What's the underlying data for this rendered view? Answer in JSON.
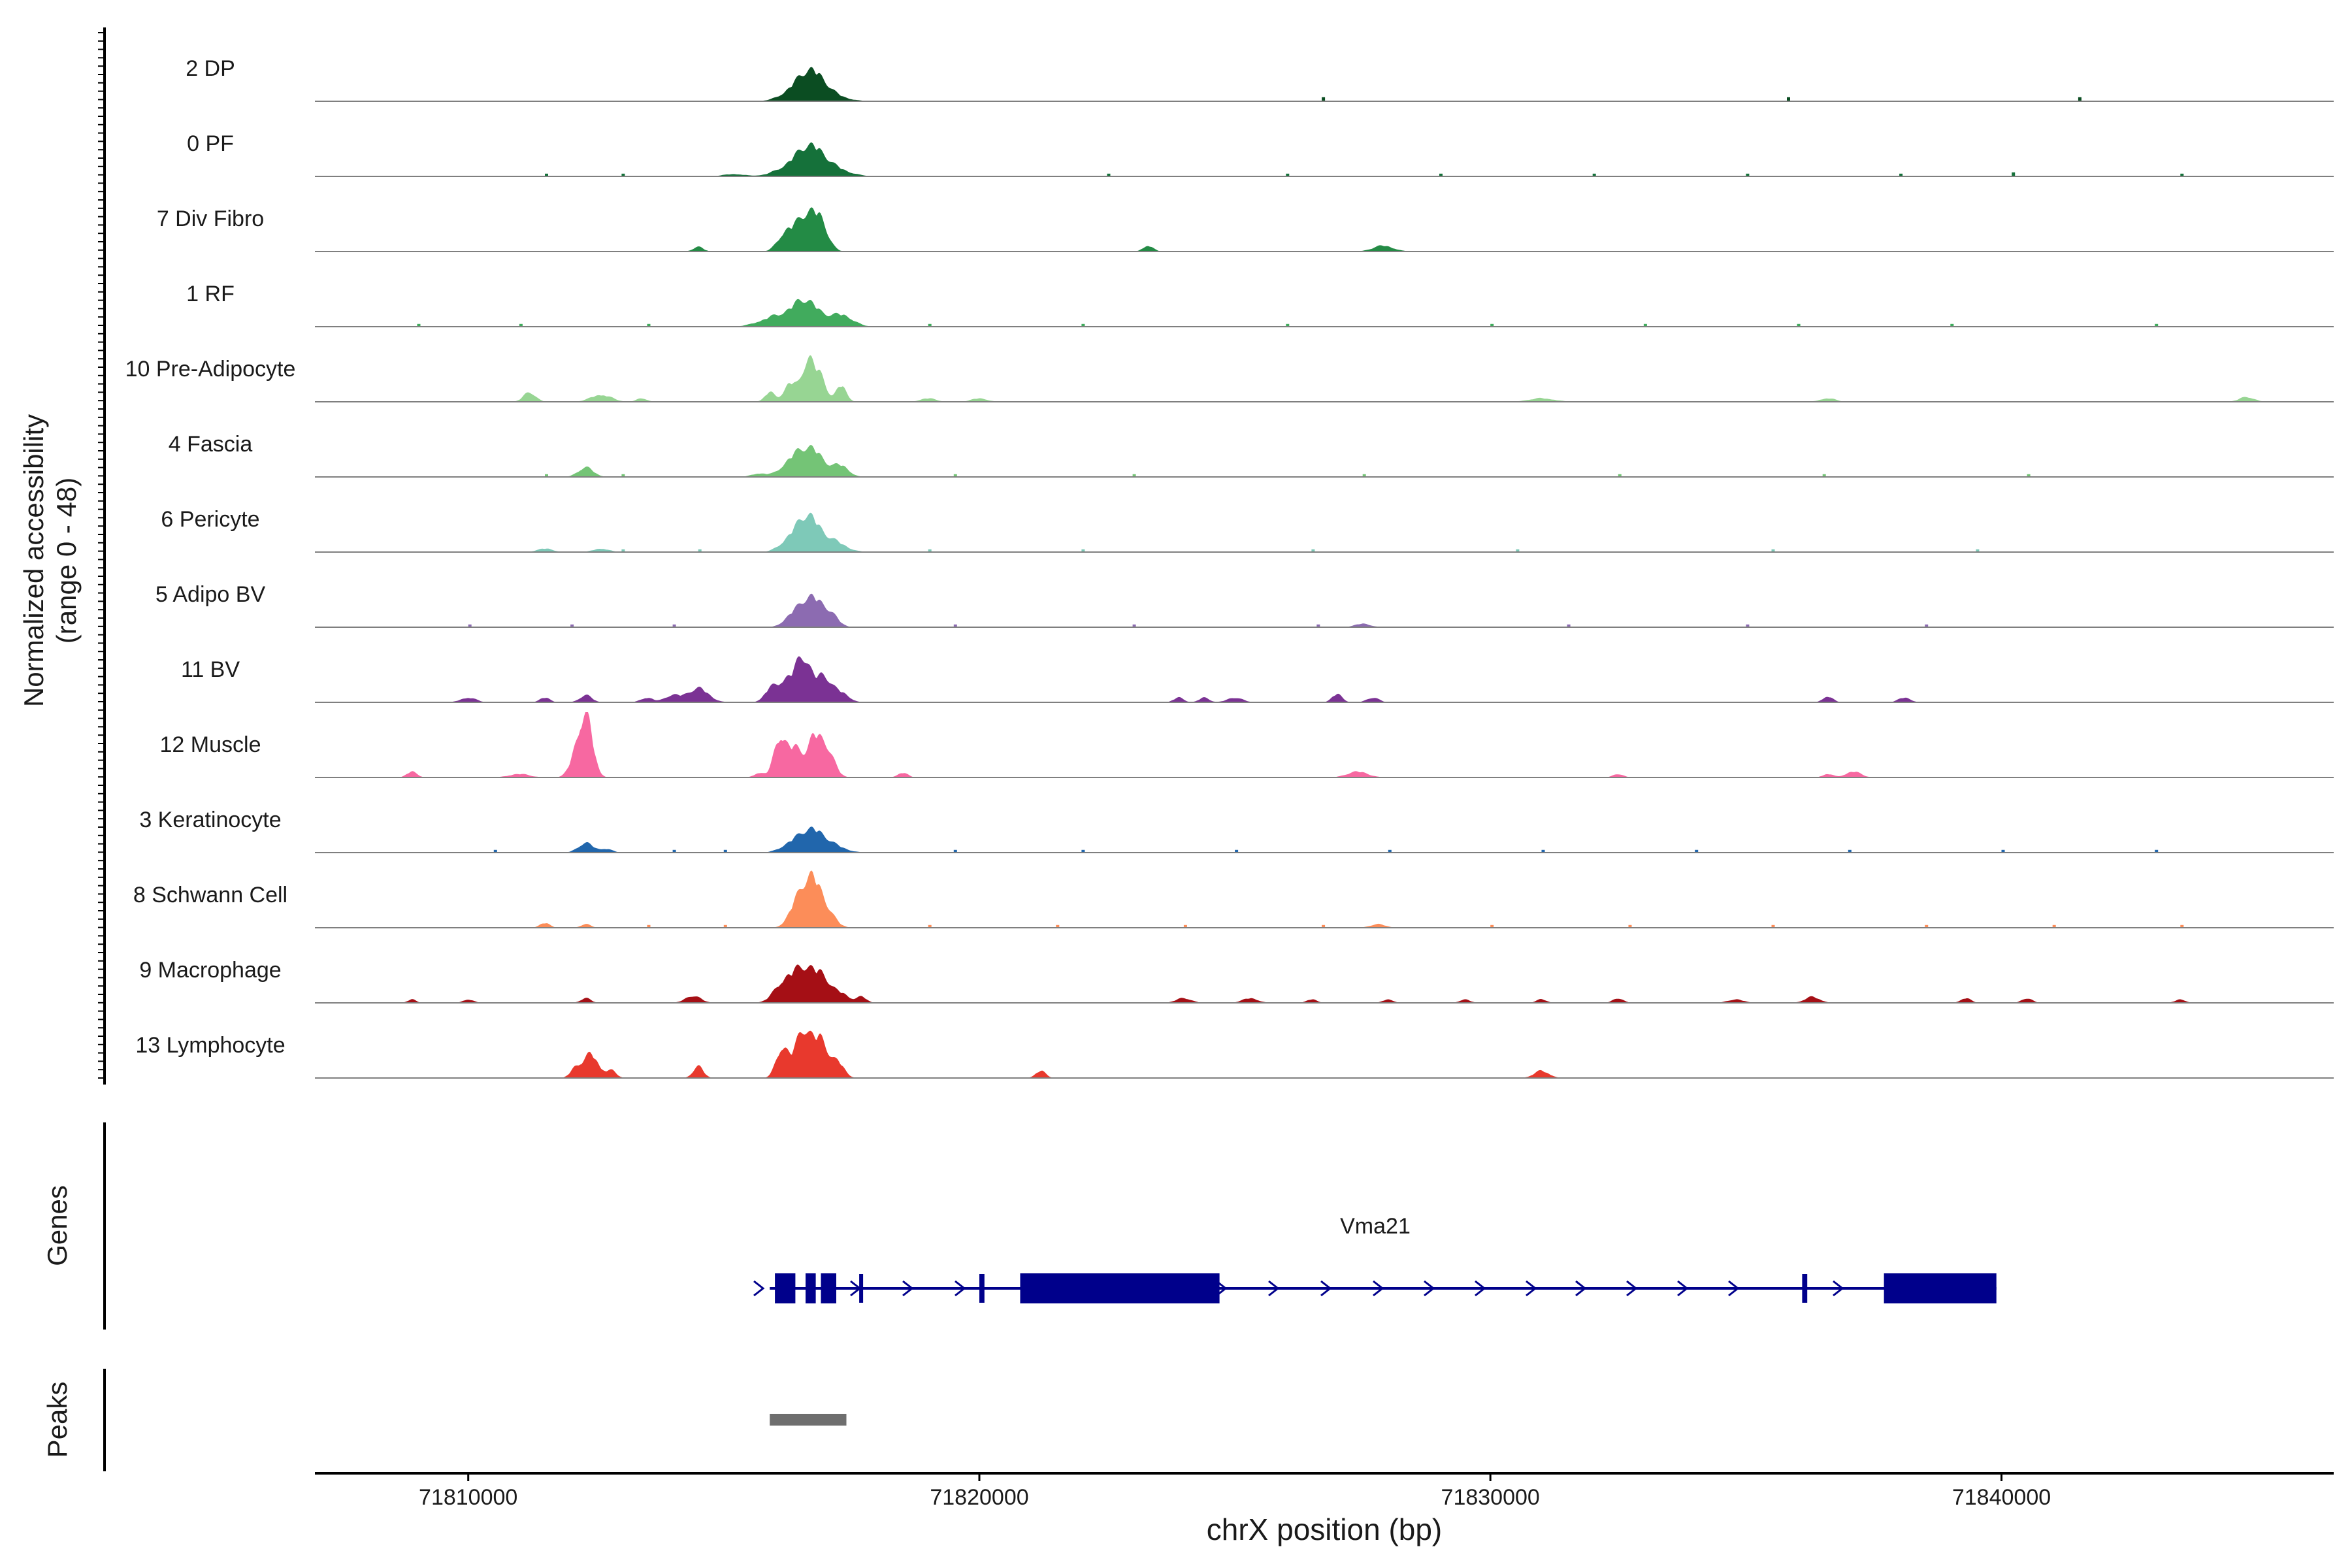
{
  "chart_data": {
    "type": "area",
    "chromosome": "chrX",
    "xlabel": "chrX position (bp)",
    "xlim": [
      71807000,
      71846500
    ],
    "xticks": [
      71810000,
      71820000,
      71830000,
      71840000
    ],
    "xtick_labels": [
      "71810000",
      "71820000",
      "71830000",
      "71840000"
    ],
    "ylabel_line1": "Normalized accessibility",
    "ylabel_line2": "(range 0 - 48)",
    "ylim": [
      0,
      48
    ],
    "baseline_color": "#7f7f7f",
    "series": [
      {
        "name": "2 DP",
        "color": "#0b4d22",
        "peaks": [
          [
            71816700,
            260,
            24
          ],
          [
            71816300,
            250,
            5
          ],
          [
            71817100,
            300,
            4
          ]
        ],
        "noise": [
          [
            71826700,
            3
          ],
          [
            71835800,
            3
          ],
          [
            71841500,
            3
          ]
        ]
      },
      {
        "name": "0 PF",
        "color": "#15713a",
        "peaks": [
          [
            71816700,
            260,
            22
          ],
          [
            71816300,
            300,
            7
          ],
          [
            71817150,
            300,
            6
          ],
          [
            71815200,
            200,
            2
          ]
        ],
        "noise": [
          [
            71811500,
            2
          ],
          [
            71813000,
            2
          ],
          [
            71822500,
            2
          ],
          [
            71826000,
            2
          ],
          [
            71829000,
            2
          ],
          [
            71832000,
            2
          ],
          [
            71835000,
            2
          ],
          [
            71838000,
            2
          ],
          [
            71840200,
            3
          ],
          [
            71843500,
            2
          ]
        ]
      },
      {
        "name": "7 Div Fibro",
        "color": "#238b45",
        "peaks": [
          [
            71816600,
            200,
            30
          ],
          [
            71816200,
            150,
            14
          ],
          [
            71816900,
            150,
            20
          ],
          [
            71814500,
            100,
            4
          ],
          [
            71823300,
            100,
            5
          ],
          [
            71827900,
            200,
            5
          ]
        ],
        "noise": []
      },
      {
        "name": "1 RF",
        "color": "#41ab5d",
        "peaks": [
          [
            71816600,
            260,
            22
          ],
          [
            71816000,
            300,
            8
          ],
          [
            71817300,
            220,
            10
          ]
        ],
        "noise": [
          [
            71809000,
            2
          ],
          [
            71811000,
            2
          ],
          [
            71813500,
            2
          ],
          [
            71819000,
            2
          ],
          [
            71822000,
            2
          ],
          [
            71826000,
            2
          ],
          [
            71830000,
            2
          ],
          [
            71833000,
            2
          ],
          [
            71836000,
            2
          ],
          [
            71839000,
            2
          ],
          [
            71843000,
            2
          ]
        ]
      },
      {
        "name": "10 Pre-Adipocyte",
        "color": "#97d593",
        "peaks": [
          [
            71816650,
            120,
            36
          ],
          [
            71816300,
            120,
            16
          ],
          [
            71816900,
            110,
            20
          ],
          [
            71817300,
            100,
            14
          ],
          [
            71815900,
            100,
            8
          ],
          [
            71811200,
            120,
            8
          ],
          [
            71812600,
            200,
            6
          ],
          [
            71813400,
            100,
            3
          ],
          [
            71819000,
            150,
            3
          ],
          [
            71820000,
            150,
            3
          ],
          [
            71831000,
            250,
            3
          ],
          [
            71836600,
            150,
            3
          ],
          [
            71844800,
            150,
            4
          ]
        ],
        "noise": []
      },
      {
        "name": "4 Fascia",
        "color": "#74c476",
        "peaks": [
          [
            71816700,
            250,
            24
          ],
          [
            71816300,
            200,
            10
          ],
          [
            71817300,
            150,
            9
          ],
          [
            71812300,
            150,
            8
          ],
          [
            71815700,
            150,
            3
          ]
        ],
        "noise": [
          [
            71811500,
            2
          ],
          [
            71813000,
            2
          ],
          [
            71819500,
            2
          ],
          [
            71823000,
            2
          ],
          [
            71827500,
            2
          ],
          [
            71832500,
            2
          ],
          [
            71836500,
            2
          ],
          [
            71840500,
            2
          ]
        ]
      },
      {
        "name": "6 Pericyte",
        "color": "#7ec9b8",
        "peaks": [
          [
            71816650,
            200,
            28
          ],
          [
            71816300,
            200,
            10
          ],
          [
            71817100,
            250,
            10
          ],
          [
            71811500,
            150,
            3
          ],
          [
            71812600,
            150,
            3
          ]
        ],
        "noise": [
          [
            71813000,
            2
          ],
          [
            71814500,
            2
          ],
          [
            71819000,
            2
          ],
          [
            71822000,
            2
          ],
          [
            71826500,
            2
          ],
          [
            71830500,
            2
          ],
          [
            71835500,
            2
          ],
          [
            71839500,
            2
          ]
        ]
      },
      {
        "name": "5 Adipo BV",
        "color": "#8c6bb1",
        "peaks": [
          [
            71816700,
            230,
            26
          ],
          [
            71816300,
            150,
            6
          ],
          [
            71817100,
            150,
            8
          ],
          [
            71827500,
            150,
            3
          ]
        ],
        "noise": [
          [
            71810000,
            2
          ],
          [
            71812000,
            2
          ],
          [
            71814000,
            2
          ],
          [
            71819500,
            2
          ],
          [
            71823000,
            2
          ],
          [
            71826600,
            2
          ],
          [
            71831500,
            2
          ],
          [
            71835000,
            2
          ],
          [
            71838500,
            2
          ]
        ]
      },
      {
        "name": "11 BV",
        "color": "#7b3294",
        "peaks": [
          [
            71816550,
            150,
            38
          ],
          [
            71816200,
            150,
            18
          ],
          [
            71816950,
            150,
            22
          ],
          [
            71817300,
            150,
            8
          ],
          [
            71815900,
            120,
            10
          ],
          [
            71814500,
            200,
            12
          ],
          [
            71814000,
            150,
            6
          ],
          [
            71812300,
            120,
            6
          ],
          [
            71811500,
            100,
            4
          ],
          [
            71813500,
            120,
            4
          ],
          [
            71810000,
            150,
            4
          ],
          [
            71823900,
            100,
            4
          ],
          [
            71824400,
            100,
            4
          ],
          [
            71825000,
            150,
            4
          ],
          [
            71827000,
            100,
            7
          ],
          [
            71827700,
            120,
            4
          ],
          [
            71836600,
            100,
            5
          ],
          [
            71838100,
            120,
            4
          ]
        ],
        "noise": []
      },
      {
        "name": "12 Muscle",
        "color": "#f768a1",
        "peaks": [
          [
            71812200,
            150,
            34
          ],
          [
            71812350,
            120,
            28
          ],
          [
            71816100,
            120,
            32
          ],
          [
            71816400,
            150,
            24
          ],
          [
            71816750,
            120,
            28
          ],
          [
            71817000,
            150,
            26
          ],
          [
            71815700,
            100,
            4
          ],
          [
            71818500,
            100,
            4
          ],
          [
            71808900,
            100,
            5
          ],
          [
            71811000,
            200,
            3
          ],
          [
            71827400,
            200,
            5
          ],
          [
            71832500,
            100,
            3
          ],
          [
            71836600,
            100,
            3
          ],
          [
            71837100,
            150,
            5
          ]
        ],
        "noise": []
      },
      {
        "name": "3 Keratinocyte",
        "color": "#2166ac",
        "peaks": [
          [
            71816700,
            230,
            18
          ],
          [
            71816300,
            200,
            6
          ],
          [
            71817100,
            250,
            6
          ],
          [
            71812300,
            150,
            8
          ],
          [
            71812700,
            120,
            3
          ]
        ],
        "noise": [
          [
            71810500,
            2
          ],
          [
            71814000,
            2
          ],
          [
            71815000,
            2
          ],
          [
            71819500,
            2
          ],
          [
            71822000,
            2
          ],
          [
            71825000,
            2
          ],
          [
            71828000,
            2
          ],
          [
            71831000,
            2
          ],
          [
            71834000,
            2
          ],
          [
            71837000,
            2
          ],
          [
            71840000,
            2
          ],
          [
            71843000,
            2
          ]
        ]
      },
      {
        "name": "8 Schwann Cell",
        "color": "#fc8d59",
        "peaks": [
          [
            71816700,
            170,
            40
          ],
          [
            71816400,
            150,
            16
          ],
          [
            71817000,
            170,
            14
          ],
          [
            71811500,
            100,
            4
          ],
          [
            71812300,
            100,
            3
          ],
          [
            71827800,
            150,
            3
          ]
        ],
        "noise": [
          [
            71813500,
            2
          ],
          [
            71815000,
            2
          ],
          [
            71819000,
            2
          ],
          [
            71821500,
            2
          ],
          [
            71824000,
            2
          ],
          [
            71826700,
            2
          ],
          [
            71830000,
            2
          ],
          [
            71832700,
            2
          ],
          [
            71835500,
            2
          ],
          [
            71838500,
            2
          ],
          [
            71841000,
            2
          ],
          [
            71843500,
            2
          ]
        ]
      },
      {
        "name": "9 Macrophage",
        "color": "#a50f15",
        "peaks": [
          [
            71816600,
            200,
            28
          ],
          [
            71816200,
            200,
            18
          ],
          [
            71816950,
            150,
            18
          ],
          [
            71817300,
            150,
            8
          ],
          [
            71817700,
            100,
            5
          ],
          [
            71814400,
            150,
            6
          ],
          [
            71812300,
            100,
            4
          ],
          [
            71810000,
            100,
            3
          ],
          [
            71808900,
            80,
            3
          ],
          [
            71824000,
            150,
            4
          ],
          [
            71825300,
            150,
            4
          ],
          [
            71826500,
            100,
            3
          ],
          [
            71828000,
            100,
            3
          ],
          [
            71829500,
            100,
            3
          ],
          [
            71831000,
            100,
            3
          ],
          [
            71832500,
            100,
            4
          ],
          [
            71834800,
            150,
            3
          ],
          [
            71836300,
            150,
            5
          ],
          [
            71839300,
            100,
            4
          ],
          [
            71840500,
            100,
            4
          ],
          [
            71843500,
            100,
            3
          ]
        ],
        "noise": []
      },
      {
        "name": "13 Lymphocyte",
        "color": "#e8392d",
        "peaks": [
          [
            71816550,
            150,
            40
          ],
          [
            71816150,
            120,
            26
          ],
          [
            71816900,
            150,
            32
          ],
          [
            71817250,
            120,
            12
          ],
          [
            71812400,
            150,
            20
          ],
          [
            71812100,
            100,
            8
          ],
          [
            71812800,
            100,
            6
          ],
          [
            71814500,
            100,
            10
          ],
          [
            71821200,
            100,
            6
          ],
          [
            71831000,
            150,
            6
          ]
        ],
        "noise": []
      }
    ],
    "genes_label": "Genes",
    "gene": {
      "name": "Vma21",
      "color": "#00008b",
      "start": 71815900,
      "end": 71839900,
      "strand": "+",
      "exons": [
        [
          71816000,
          71816400
        ],
        [
          71816600,
          71816800
        ],
        [
          71816900,
          71817200
        ],
        [
          71817650,
          71817700
        ],
        [
          71820000,
          71820100
        ],
        [
          71820800,
          71824700
        ],
        [
          71836100,
          71836200
        ],
        [
          71837700,
          71839900
        ]
      ]
    },
    "peaks_label": "Peaks",
    "peak_regions": [
      [
        71815900,
        71817400
      ]
    ],
    "peak_color": "#6e6e6e"
  }
}
